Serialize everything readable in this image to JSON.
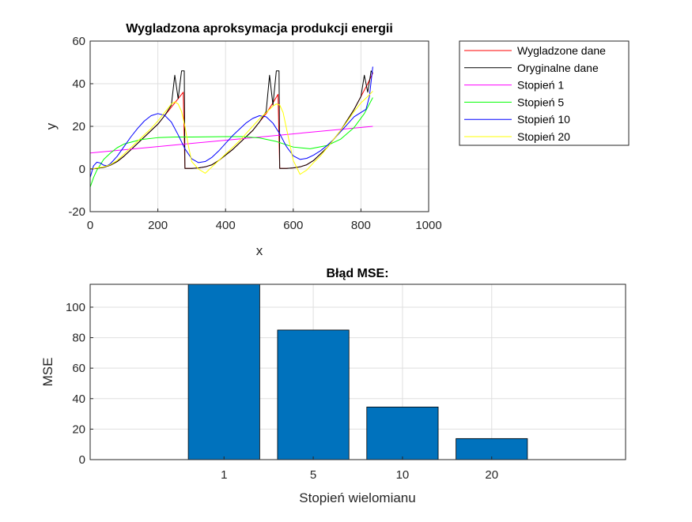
{
  "chart_data": [
    {
      "type": "line",
      "title": "Wygladzona aproksymacja produkcji energii",
      "xlabel": "x",
      "ylabel": "y",
      "xlim": [
        0,
        1000
      ],
      "ylim": [
        -20,
        60
      ],
      "xticks": [
        0,
        200,
        400,
        600,
        800,
        1000
      ],
      "yticks": [
        -20,
        0,
        20,
        40,
        60
      ],
      "grid": true,
      "legend_position": "outside-right",
      "series": [
        {
          "name": "Wygladzone dane",
          "color": "#ff0000",
          "x": [
            0,
            20,
            40,
            60,
            80,
            100,
            120,
            140,
            160,
            180,
            200,
            220,
            240,
            260,
            275,
            280,
            300,
            320,
            340,
            360,
            380,
            400,
            420,
            440,
            460,
            480,
            500,
            520,
            540,
            555,
            560,
            580,
            600,
            620,
            640,
            660,
            680,
            700,
            720,
            740,
            760,
            780,
            800,
            820,
            835
          ],
          "y": [
            0,
            0.3,
            0.8,
            1.8,
            3.5,
            6,
            9,
            12,
            15,
            18,
            21,
            25,
            29,
            33,
            36,
            0.3,
            0.3,
            0.5,
            1,
            2,
            4,
            6.5,
            9,
            12,
            15,
            18,
            22,
            26,
            31,
            35,
            0.3,
            0.3,
            0.5,
            1,
            2,
            4,
            7,
            10,
            14,
            18,
            23,
            28,
            34,
            40,
            45
          ]
        },
        {
          "name": "Oryginalne dane",
          "color": "#000000",
          "x": [
            0,
            20,
            40,
            60,
            80,
            100,
            120,
            140,
            160,
            180,
            200,
            220,
            240,
            250,
            260,
            270,
            278,
            280,
            300,
            320,
            340,
            360,
            380,
            400,
            420,
            440,
            460,
            480,
            500,
            520,
            530,
            540,
            550,
            558,
            560,
            580,
            600,
            620,
            640,
            660,
            680,
            700,
            720,
            740,
            760,
            780,
            800,
            810,
            820,
            830,
            835
          ],
          "y": [
            0,
            0.3,
            0.8,
            1.8,
            3.5,
            6,
            9,
            12,
            15,
            18,
            21,
            25,
            30,
            44,
            33,
            46,
            46,
            0.3,
            0.3,
            0.5,
            1,
            2,
            4,
            6.5,
            9,
            12,
            15,
            18,
            22,
            27,
            44,
            30,
            46,
            46,
            0.3,
            0.3,
            0.5,
            1,
            2,
            4,
            7,
            10,
            14,
            18,
            23,
            28,
            34,
            44,
            36,
            46,
            45
          ]
        },
        {
          "name": "Stopień 1",
          "color": "#ff00ff",
          "x": [
            0,
            835
          ],
          "y": [
            7.5,
            20
          ]
        },
        {
          "name": "Stopień 5",
          "color": "#00ff00",
          "x": [
            0,
            10,
            20,
            40,
            60,
            80,
            100,
            150,
            200,
            250,
            300,
            350,
            400,
            450,
            500,
            550,
            600,
            650,
            700,
            740,
            780,
            810,
            835
          ],
          "y": [
            -8.5,
            -4,
            -0.5,
            4.5,
            7.5,
            10,
            11.7,
            13.8,
            14.7,
            15,
            15,
            15.1,
            15.2,
            15.2,
            14.6,
            12.9,
            10.3,
            9.5,
            11,
            14,
            19.5,
            26,
            33.5
          ]
        },
        {
          "name": "Stopień 10",
          "color": "#0000ff",
          "x": [
            0,
            10,
            20,
            30,
            40,
            50,
            60,
            80,
            100,
            120,
            140,
            160,
            180,
            200,
            220,
            240,
            260,
            280,
            300,
            320,
            340,
            360,
            380,
            400,
            420,
            440,
            460,
            480,
            500,
            520,
            540,
            560,
            580,
            600,
            620,
            640,
            660,
            680,
            700,
            720,
            740,
            760,
            780,
            800,
            815,
            825,
            835
          ],
          "y": [
            -4,
            1.5,
            3.2,
            2.8,
            1.8,
            1.5,
            2.5,
            6,
            10.5,
            15,
            19,
            22.5,
            25,
            26,
            25.2,
            22,
            16,
            9.5,
            4.8,
            3,
            3.5,
            5.5,
            8.5,
            12,
            15.5,
            18.5,
            21.5,
            23.7,
            25,
            24.5,
            21.5,
            16.5,
            10.5,
            6.2,
            4.5,
            5,
            6.5,
            8.5,
            11,
            14,
            17.5,
            21,
            24.5,
            26.5,
            28,
            34,
            48
          ]
        },
        {
          "name": "Stopień 20",
          "color": "#ffff00",
          "x": [
            0,
            10,
            20,
            40,
            60,
            80,
            100,
            120,
            140,
            160,
            180,
            200,
            220,
            240,
            250,
            260,
            270,
            280,
            290,
            300,
            320,
            340,
            360,
            380,
            400,
            420,
            440,
            460,
            480,
            500,
            520,
            540,
            550,
            560,
            570,
            580,
            600,
            620,
            640,
            660,
            680,
            700,
            720,
            740,
            760,
            780,
            800,
            820,
            835
          ],
          "y": [
            0,
            0.2,
            0.5,
            1,
            2,
            4,
            7,
            10,
            13,
            16,
            19,
            22.5,
            26.5,
            30.5,
            31.5,
            30.5,
            27,
            20,
            11,
            3.5,
            0,
            -2,
            1,
            4,
            7,
            10,
            13,
            16.5,
            20,
            23.5,
            26.5,
            29.5,
            30.5,
            30,
            26.5,
            19,
            4,
            -2.5,
            -0.5,
            3,
            6,
            10,
            14,
            18,
            22.5,
            27,
            31,
            34,
            36.5
          ]
        }
      ]
    },
    {
      "type": "bar",
      "title": "Błąd MSE:",
      "xlabel": "Stopień wielomianu",
      "ylabel": "MSE",
      "categories": [
        "1",
        "5",
        "10",
        "20"
      ],
      "values": [
        115,
        85,
        34.5,
        13.8
      ],
      "ylim": [
        0,
        115
      ],
      "yticks": [
        0,
        20,
        40,
        60,
        80,
        100
      ],
      "bar_color": "#0072bd",
      "grid": true
    }
  ]
}
